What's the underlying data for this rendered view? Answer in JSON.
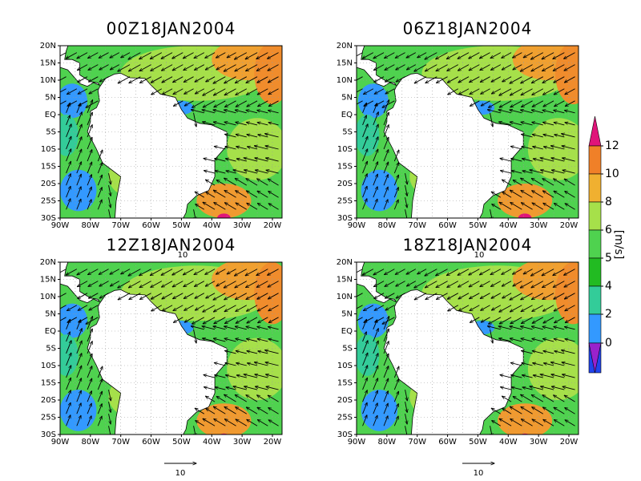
{
  "panels": [
    {
      "title": "00Z18JAN2004",
      "lon_labels": [
        "90W",
        "80W",
        "70W",
        "60W",
        "50W",
        "40W",
        "30W",
        "20W"
      ],
      "lat_labels": [
        "20N",
        "15N",
        "10N",
        "5N",
        "EQ",
        "5S",
        "10S",
        "15S",
        "20S",
        "25S",
        "30S"
      ]
    },
    {
      "title": "06Z18JAN2004",
      "lon_labels": [
        "90W",
        "80W",
        "70W",
        "60W",
        "50W",
        "40W",
        "30W",
        "20W"
      ],
      "lat_labels": [
        "20N",
        "15N",
        "10N",
        "5N",
        "EQ",
        "5S",
        "10S",
        "15S",
        "20S",
        "25S",
        "30S"
      ]
    },
    {
      "title": "12Z18JAN2004",
      "lon_labels": [
        "90W",
        "80W",
        "70W",
        "60W",
        "50W",
        "40W",
        "30W",
        "20W"
      ],
      "lat_labels": [
        "20N",
        "15N",
        "10N",
        "5N",
        "EQ",
        "5S",
        "10S",
        "15S",
        "20S",
        "25S",
        "30S"
      ]
    },
    {
      "title": "18Z18JAN2004",
      "lon_labels": [
        "90W",
        "80W",
        "70W",
        "60W",
        "50W",
        "40W",
        "30W",
        "20W"
      ],
      "lat_labels": [
        "20N",
        "15N",
        "10N",
        "5N",
        "EQ",
        "5S",
        "10S",
        "15S",
        "20S",
        "25S",
        "30S"
      ]
    }
  ],
  "colorbar": {
    "ticks": [
      12,
      10,
      8,
      6,
      5,
      4,
      2,
      0
    ],
    "unit": "[m/s]"
  },
  "reference_vectors": [
    "10",
    "10",
    "10",
    "10"
  ]
}
